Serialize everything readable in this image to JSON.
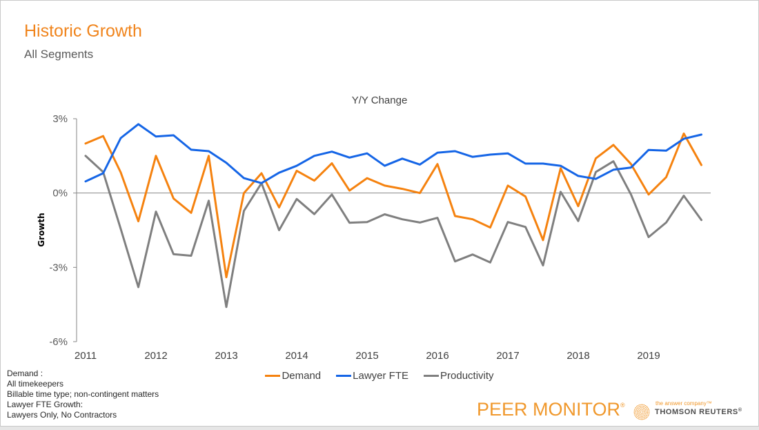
{
  "header": {
    "title": "Historic Growth",
    "subtitle": "All Segments"
  },
  "footnote": [
    "Demand :",
    "All timekeepers",
    "Billable time type; non-contingent matters",
    "Lawyer FTE Growth:",
    "Lawyers Only, No Contractors"
  ],
  "branding": {
    "product": "PEER MONITOR",
    "product_mark": "®",
    "tagline": "the answer company™",
    "company": "THOMSON REUTERS",
    "company_mark": "®"
  },
  "colors": {
    "title": "#f0841c",
    "demand": "#f5820f",
    "lawyer_fte": "#1565e6",
    "productivity": "#7f7f7f",
    "axis": "#868686"
  },
  "chart_data": {
    "type": "line",
    "title": "Y/Y Change",
    "xlabel": "",
    "ylabel": "Growth",
    "ylim": [
      -6,
      3
    ],
    "yticks": [
      3,
      0,
      -3,
      -6
    ],
    "ytick_labels": [
      "3%",
      "0%",
      "-3%",
      "-6%"
    ],
    "x_tick_labels": [
      "2011",
      "2012",
      "2013",
      "2014",
      "2015",
      "2016",
      "2017",
      "2018",
      "2019"
    ],
    "x": [
      "2011 Q1",
      "2011 Q2",
      "2011 Q3",
      "2011 Q4",
      "2012 Q1",
      "2012 Q2",
      "2012 Q3",
      "2012 Q4",
      "2013 Q1",
      "2013 Q2",
      "2013 Q3",
      "2013 Q4",
      "2014 Q1",
      "2014 Q2",
      "2014 Q3",
      "2014 Q4",
      "2015 Q1",
      "2015 Q2",
      "2015 Q3",
      "2015 Q4",
      "2016 Q1",
      "2016 Q2",
      "2016 Q3",
      "2016 Q4",
      "2017 Q1",
      "2017 Q2",
      "2017 Q3",
      "2017 Q4",
      "2018 Q1",
      "2018 Q2",
      "2018 Q3",
      "2018 Q4",
      "2019 Q1",
      "2019 Q2",
      "2019 Q3",
      "2019 Q4"
    ],
    "grid": false,
    "legend_position": "bottom",
    "series": [
      {
        "name": "Demand",
        "color": "#f5820f",
        "values": [
          2.0,
          2.3,
          0.83,
          -1.14,
          1.5,
          -0.22,
          -0.8,
          1.5,
          -3.4,
          0.0,
          0.8,
          -0.58,
          0.9,
          0.5,
          1.2,
          0.1,
          0.6,
          0.3,
          0.17,
          0.0,
          1.17,
          -0.93,
          -1.06,
          -1.39,
          0.3,
          -0.14,
          -1.9,
          1.0,
          -0.53,
          1.4,
          1.94,
          1.17,
          -0.06,
          0.64,
          2.4,
          1.13
        ]
      },
      {
        "name": "Lawyer FTE",
        "color": "#1565e6",
        "values": [
          0.47,
          0.8,
          2.22,
          2.78,
          2.28,
          2.33,
          1.75,
          1.69,
          1.22,
          0.6,
          0.4,
          0.82,
          1.1,
          1.5,
          1.67,
          1.43,
          1.6,
          1.1,
          1.39,
          1.15,
          1.63,
          1.69,
          1.46,
          1.55,
          1.6,
          1.19,
          1.19,
          1.1,
          0.69,
          0.57,
          0.94,
          1.03,
          1.74,
          1.71,
          2.19,
          2.36
        ]
      },
      {
        "name": "Productivity",
        "color": "#7f7f7f",
        "values": [
          1.5,
          0.85,
          -1.45,
          -3.8,
          -0.75,
          -2.47,
          -2.53,
          -0.31,
          -4.6,
          -0.72,
          0.4,
          -1.5,
          -0.24,
          -0.85,
          -0.06,
          -1.2,
          -1.17,
          -0.86,
          -1.06,
          -1.19,
          -1.0,
          -2.76,
          -2.48,
          -2.8,
          -1.17,
          -1.37,
          -2.92,
          0.05,
          -1.13,
          0.85,
          1.28,
          -0.06,
          -1.78,
          -1.19,
          -0.11,
          -1.09
        ]
      }
    ]
  }
}
